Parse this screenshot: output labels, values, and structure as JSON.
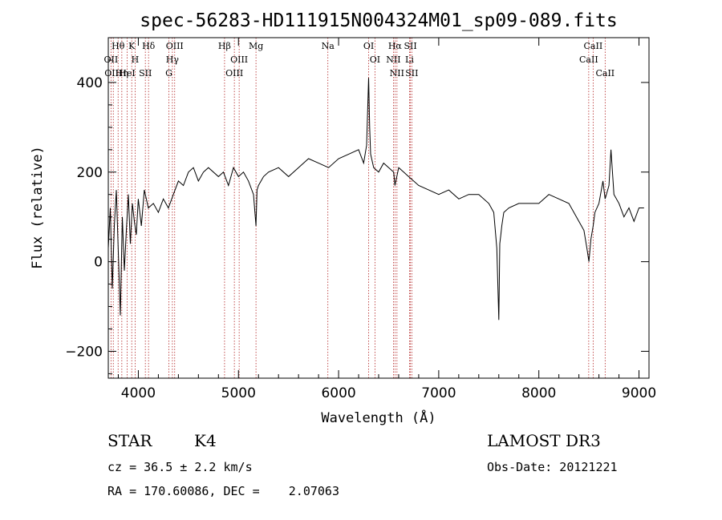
{
  "chart_data": {
    "type": "line",
    "title": "spec-56283-HD111915N004324M01_sp09-089.fits",
    "xlabel": "Wavelength (Å)",
    "ylabel": "Flux (relative)",
    "xlim": [
      3700,
      9100
    ],
    "ylim": [
      -260,
      500
    ],
    "xticks": [
      "4000",
      "5000",
      "6000",
      "7000",
      "8000",
      "9000"
    ],
    "yticks": [
      "-200",
      "0",
      "200",
      "400"
    ],
    "grid": false,
    "series": [
      {
        "x": [
          3700,
          3720,
          3740,
          3760,
          3780,
          3800,
          3820,
          3840,
          3860,
          3880,
          3900,
          3920,
          3940,
          3960,
          3980,
          4000,
          4030,
          4060,
          4100,
          4150,
          4200,
          4250,
          4300,
          4350,
          4400,
          4450,
          4500,
          4550,
          4600,
          4650,
          4700,
          4800,
          4850,
          4900,
          4950,
          5000,
          5050,
          5100,
          5150,
          5175,
          5185,
          5200,
          5250,
          5300,
          5400,
          5500,
          5600,
          5700,
          5800,
          5900,
          6000,
          6100,
          6200,
          6250,
          6280,
          6300,
          6310,
          6320,
          6350,
          6400,
          6450,
          6500,
          6550,
          6563,
          6600,
          6650,
          6700,
          6800,
          6900,
          7000,
          7100,
          7200,
          7300,
          7400,
          7500,
          7550,
          7580,
          7600,
          7610,
          7620,
          7630,
          7650,
          7700,
          7800,
          7900,
          8000,
          8100,
          8200,
          8300,
          8400,
          8450,
          8480,
          8500,
          8520,
          8542,
          8560,
          8600,
          8640,
          8662,
          8700,
          8720,
          8750,
          8800,
          8850,
          8900,
          8950,
          9000,
          9050
        ],
        "y": [
          30,
          120,
          -60,
          80,
          160,
          20,
          -120,
          100,
          -20,
          70,
          150,
          40,
          130,
          90,
          60,
          140,
          80,
          160,
          120,
          130,
          110,
          140,
          120,
          150,
          180,
          170,
          200,
          210,
          180,
          200,
          210,
          190,
          200,
          170,
          210,
          190,
          200,
          180,
          150,
          80,
          160,
          170,
          190,
          200,
          210,
          190,
          210,
          230,
          220,
          210,
          230,
          240,
          250,
          220,
          260,
          410,
          300,
          240,
          210,
          200,
          220,
          210,
          200,
          170,
          210,
          200,
          190,
          170,
          160,
          150,
          160,
          140,
          150,
          150,
          130,
          110,
          30,
          -130,
          40,
          60,
          80,
          110,
          120,
          130,
          130,
          130,
          150,
          140,
          130,
          90,
          70,
          30,
          0,
          50,
          80,
          110,
          130,
          180,
          140,
          170,
          250,
          150,
          130,
          100,
          120,
          90,
          120,
          120
        ]
      }
    ],
    "emission_line_markers": [
      {
        "label": "Hθ",
        "x": 3798
      },
      {
        "label": "OII",
        "x": 3727
      },
      {
        "label": "OIII",
        "x": 3750
      },
      {
        "label": "K",
        "x": 3934
      },
      {
        "label": "HeI",
        "x": 3888
      },
      {
        "label": "Hη",
        "x": 3835
      },
      {
        "label": "H",
        "x": 3968
      },
      {
        "label": "Hδ",
        "x": 4102
      },
      {
        "label": "SII",
        "x": 4070
      },
      {
        "label": "OIII",
        "x": 4363
      },
      {
        "label": "Hγ",
        "x": 4340
      },
      {
        "label": "G",
        "x": 4305
      },
      {
        "label": "Hβ",
        "x": 4861
      },
      {
        "label": "OIII",
        "x": 5007
      },
      {
        "label": "OIII",
        "x": 4959
      },
      {
        "label": "Mg",
        "x": 5175
      },
      {
        "label": "Na",
        "x": 5893
      },
      {
        "label": "OI",
        "x": 6300
      },
      {
        "label": "OI",
        "x": 6363
      },
      {
        "label": "Hα",
        "x": 6563
      },
      {
        "label": "NII",
        "x": 6548
      },
      {
        "label": "NII",
        "x": 6583
      },
      {
        "label": "SII",
        "x": 6717
      },
      {
        "label": "Li",
        "x": 6708
      },
      {
        "label": "SII",
        "x": 6731
      },
      {
        "label": "CaII",
        "x": 8542
      },
      {
        "label": "CaII",
        "x": 8498
      },
      {
        "label": "CaII",
        "x": 8662
      }
    ]
  },
  "info": {
    "class": "STAR",
    "subclass": "K4",
    "survey": "LAMOST DR3",
    "cz": "cz = 36.5 ± 2.2 km/s",
    "obs_date": "Obs-Date: 20121221",
    "coords": "RA = 170.60086, DEC =    2.07063"
  },
  "colors": {
    "axis": "#000000",
    "spectrum": "#000000",
    "marker_line": "#b22222"
  }
}
